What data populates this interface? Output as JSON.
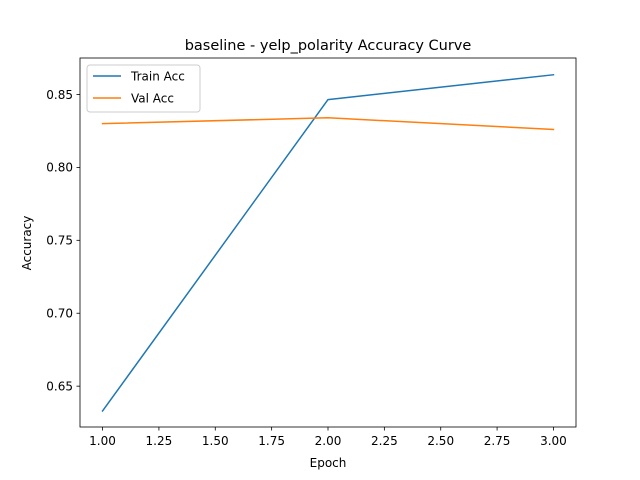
{
  "chart_data": {
    "type": "line",
    "title": "baseline - yelp_polarity Accuracy Curve",
    "xlabel": "Epoch",
    "ylabel": "Accuracy",
    "x": [
      1,
      2,
      3
    ],
    "xlim": [
      0.9,
      3.1
    ],
    "ylim": [
      0.622,
      0.875
    ],
    "xticks": [
      1.0,
      1.25,
      1.5,
      1.75,
      2.0,
      2.25,
      2.5,
      2.75,
      3.0
    ],
    "xtick_labels": [
      "1.00",
      "1.25",
      "1.50",
      "1.75",
      "2.00",
      "2.25",
      "2.50",
      "2.75",
      "3.00"
    ],
    "yticks": [
      0.65,
      0.7,
      0.75,
      0.8,
      0.85
    ],
    "ytick_labels": [
      "0.65",
      "0.70",
      "0.75",
      "0.80",
      "0.85"
    ],
    "grid": false,
    "legend_position": "top-left",
    "series": [
      {
        "name": "Train Acc",
        "color": "#1f77b4",
        "values": [
          0.633,
          0.8465,
          0.8635
        ]
      },
      {
        "name": "Val Acc",
        "color": "#ff7f0e",
        "values": [
          0.83,
          0.834,
          0.826
        ]
      }
    ]
  }
}
